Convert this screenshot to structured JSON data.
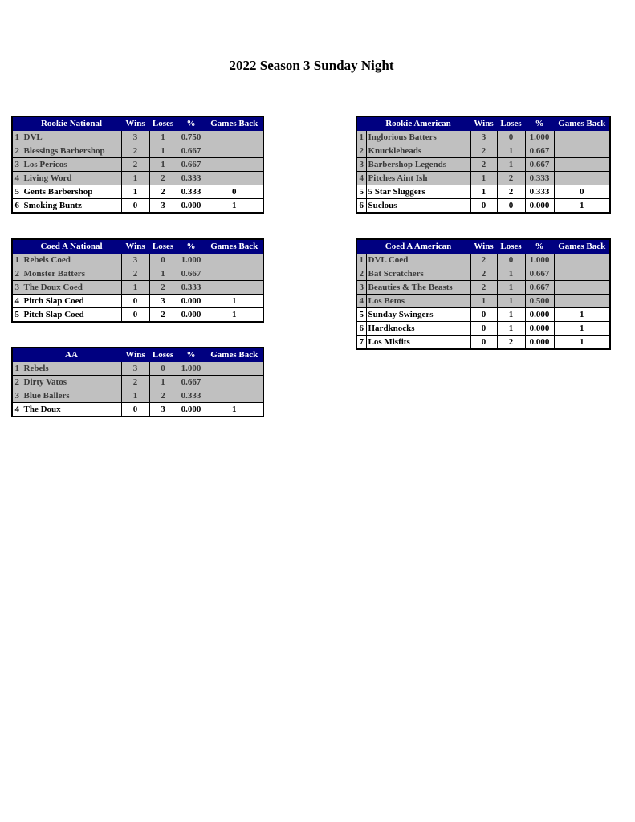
{
  "title": "2022 Season 3 Sunday Night",
  "colors": {
    "header_bg": "#000080",
    "header_text": "#ffffff",
    "gray_row": "#c0c0c0",
    "white_row": "#ffffff"
  },
  "columns": [
    "Wins",
    "Loses",
    "%",
    "Games Back"
  ],
  "tables": [
    {
      "division": "Rookie National",
      "rows": [
        {
          "rank": "1",
          "team": "DVL",
          "wins": "3",
          "loses": "1",
          "pct": "0.750",
          "gb": "",
          "highlight": false
        },
        {
          "rank": "2",
          "team": "Blessings Barbershop",
          "wins": "2",
          "loses": "1",
          "pct": "0.667",
          "gb": "",
          "highlight": false
        },
        {
          "rank": "3",
          "team": "Los Pericos",
          "wins": "2",
          "loses": "1",
          "pct": "0.667",
          "gb": "",
          "highlight": false
        },
        {
          "rank": "4",
          "team": "Living Word",
          "wins": "1",
          "loses": "2",
          "pct": "0.333",
          "gb": "",
          "highlight": false
        },
        {
          "rank": "5",
          "team": "Gents Barbershop",
          "wins": "1",
          "loses": "2",
          "pct": "0.333",
          "gb": "0",
          "highlight": true
        },
        {
          "rank": "6",
          "team": "Smoking Buntz",
          "wins": "0",
          "loses": "3",
          "pct": "0.000",
          "gb": "1",
          "highlight": true
        }
      ]
    },
    {
      "division": "Rookie American",
      "rows": [
        {
          "rank": "1",
          "team": "Inglorious Batters",
          "wins": "3",
          "loses": "0",
          "pct": "1.000",
          "gb": "",
          "highlight": false
        },
        {
          "rank": "2",
          "team": "Knuckleheads",
          "wins": "2",
          "loses": "1",
          "pct": "0.667",
          "gb": "",
          "highlight": false
        },
        {
          "rank": "3",
          "team": "Barbershop Legends",
          "wins": "2",
          "loses": "1",
          "pct": "0.667",
          "gb": "",
          "highlight": false
        },
        {
          "rank": "4",
          "team": "Pitches Aint Ish",
          "wins": "1",
          "loses": "2",
          "pct": "0.333",
          "gb": "",
          "highlight": false
        },
        {
          "rank": "5",
          "team": "5 Star Sluggers",
          "wins": "1",
          "loses": "2",
          "pct": "0.333",
          "gb": "0",
          "highlight": true
        },
        {
          "rank": "6",
          "team": "Suclous",
          "wins": "0",
          "loses": "0",
          "pct": "0.000",
          "gb": "1",
          "highlight": true
        }
      ]
    },
    {
      "division": "Coed A National",
      "rows": [
        {
          "rank": "1",
          "team": "Rebels Coed",
          "wins": "3",
          "loses": "0",
          "pct": "1.000",
          "gb": "",
          "highlight": false
        },
        {
          "rank": "2",
          "team": "Monster Batters",
          "wins": "2",
          "loses": "1",
          "pct": "0.667",
          "gb": "",
          "highlight": false
        },
        {
          "rank": "3",
          "team": "The Doux Coed",
          "wins": "1",
          "loses": "2",
          "pct": "0.333",
          "gb": "",
          "highlight": false
        },
        {
          "rank": "4",
          "team": "Pitch Slap Coed",
          "wins": "0",
          "loses": "3",
          "pct": "0.000",
          "gb": "1",
          "highlight": true
        },
        {
          "rank": "5",
          "team": "Pitch Slap Coed",
          "wins": "0",
          "loses": "2",
          "pct": "0.000",
          "gb": "1",
          "highlight": true
        }
      ]
    },
    {
      "division": "Coed A American",
      "rows": [
        {
          "rank": "1",
          "team": "DVL Coed",
          "wins": "2",
          "loses": "0",
          "pct": "1.000",
          "gb": "",
          "highlight": false
        },
        {
          "rank": "2",
          "team": "Bat Scratchers",
          "wins": "2",
          "loses": "1",
          "pct": "0.667",
          "gb": "",
          "highlight": false
        },
        {
          "rank": "3",
          "team": "Beauties & The Beasts",
          "wins": "2",
          "loses": "1",
          "pct": "0.667",
          "gb": "",
          "highlight": false
        },
        {
          "rank": "4",
          "team": "Los Betos",
          "wins": "1",
          "loses": "1",
          "pct": "0.500",
          "gb": "",
          "highlight": false
        },
        {
          "rank": "5",
          "team": "Sunday Swingers",
          "wins": "0",
          "loses": "1",
          "pct": "0.000",
          "gb": "1",
          "highlight": true
        },
        {
          "rank": "6",
          "team": "Hardknocks",
          "wins": "0",
          "loses": "1",
          "pct": "0.000",
          "gb": "1",
          "highlight": true
        },
        {
          "rank": "7",
          "team": "Los Misfits",
          "wins": "0",
          "loses": "2",
          "pct": "0.000",
          "gb": "1",
          "highlight": true
        }
      ]
    },
    {
      "division": "AA",
      "rows": [
        {
          "rank": "1",
          "team": "Rebels",
          "wins": "3",
          "loses": "0",
          "pct": "1.000",
          "gb": "",
          "highlight": false
        },
        {
          "rank": "2",
          "team": "Dirty Vatos",
          "wins": "2",
          "loses": "1",
          "pct": "0.667",
          "gb": "",
          "highlight": false
        },
        {
          "rank": "3",
          "team": "Blue Ballers",
          "wins": "1",
          "loses": "2",
          "pct": "0.333",
          "gb": "",
          "highlight": false
        },
        {
          "rank": "4",
          "team": "The Doux",
          "wins": "0",
          "loses": "3",
          "pct": "0.000",
          "gb": "1",
          "highlight": true
        }
      ]
    }
  ]
}
